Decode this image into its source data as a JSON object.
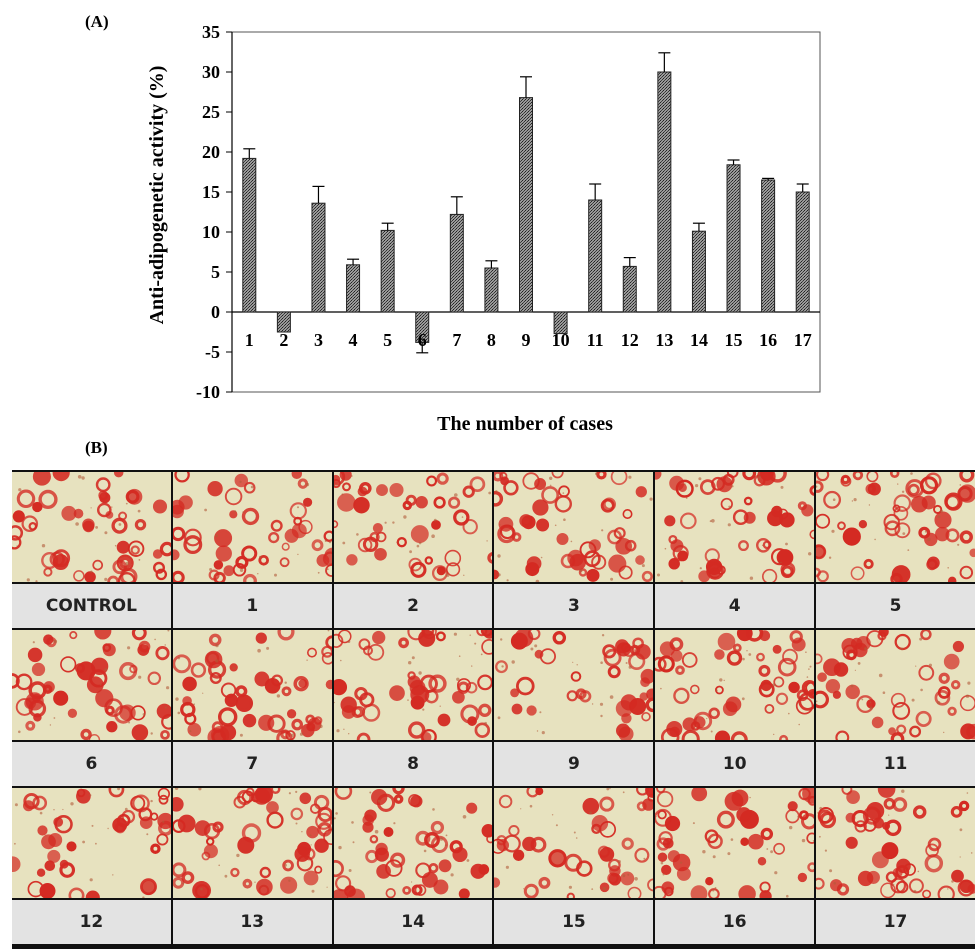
{
  "panel_a_label": "(A)",
  "panel_b_label": "(B)",
  "chart_data": {
    "type": "bar",
    "categories": [
      "1",
      "2",
      "3",
      "4",
      "5",
      "6",
      "7",
      "8",
      "9",
      "10",
      "11",
      "12",
      "13",
      "14",
      "15",
      "16",
      "17"
    ],
    "values": [
      19.2,
      -2.5,
      13.6,
      5.9,
      10.2,
      -3.8,
      12.2,
      5.5,
      26.8,
      -2.7,
      14.0,
      5.7,
      30.0,
      10.1,
      18.4,
      16.5,
      15.0
    ],
    "errors": [
      1.2,
      0.0,
      2.1,
      0.7,
      0.9,
      1.3,
      2.2,
      0.9,
      2.6,
      0.0,
      2.0,
      1.1,
      2.4,
      1.0,
      0.6,
      0.2,
      1.0
    ],
    "ylabel": "Anti-adipogenetic activity (%)",
    "xlabel": "The number of cases",
    "ylim": [
      -10,
      35
    ],
    "yticks": [
      -10,
      -5,
      0,
      5,
      10,
      15,
      20,
      25,
      30,
      35
    ],
    "grid": false,
    "bar_fill": "hatched dark gray"
  },
  "images": {
    "rows": [
      [
        "CONTROL",
        "1",
        "2",
        "3",
        "4",
        "5"
      ],
      [
        "6",
        "7",
        "8",
        "9",
        "10",
        "11"
      ],
      [
        "12",
        "13",
        "14",
        "15",
        "16",
        "17"
      ]
    ],
    "stain_color": "#d42a22",
    "background_color": "#e7e2bf"
  }
}
